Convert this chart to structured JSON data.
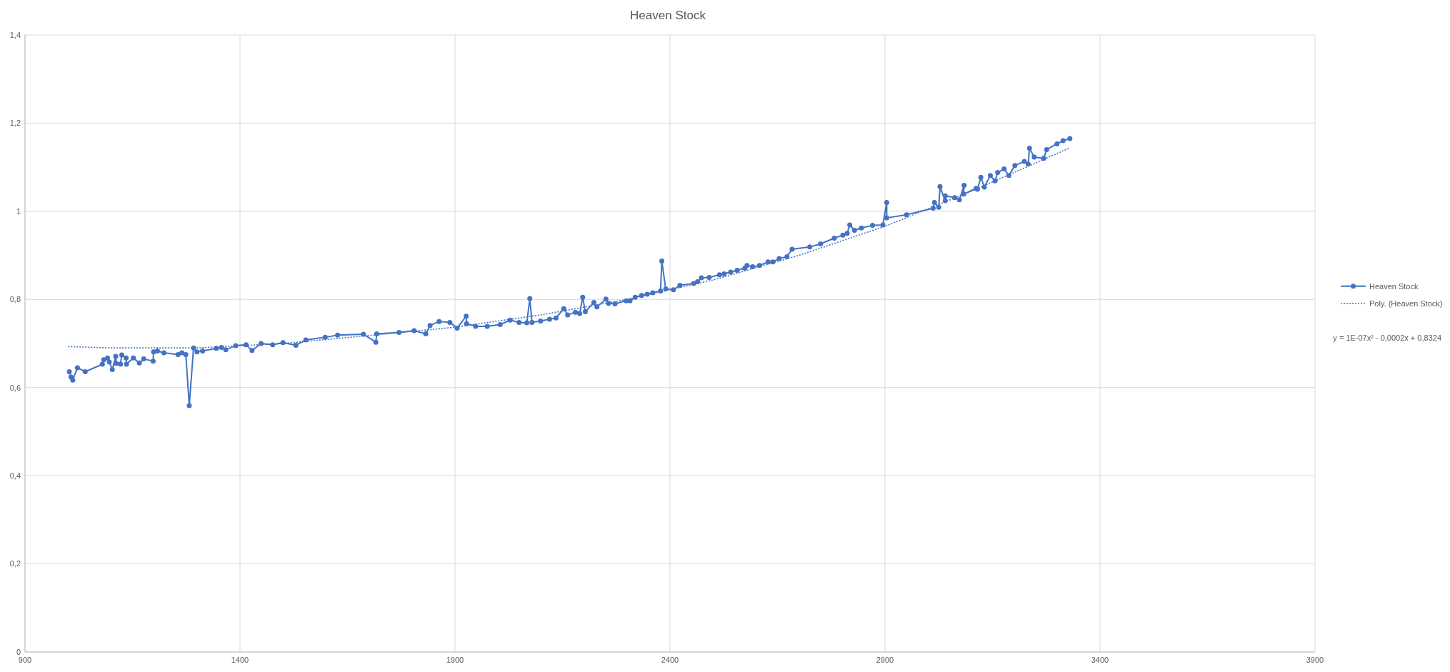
{
  "chart_data": {
    "type": "line",
    "title": "Heaven Stock",
    "xlim": [
      900,
      3900
    ],
    "xticks": [
      900,
      1400,
      1900,
      2400,
      2900,
      3400,
      3900
    ],
    "ylim": [
      0,
      1.4
    ],
    "yticks": [
      0,
      {
        "value": 0.2,
        "label": "0,2"
      },
      {
        "value": 0.4,
        "label": "0,4"
      },
      {
        "value": 0.6,
        "label": "0,6"
      },
      {
        "value": 0.8,
        "label": "0,8"
      },
      1,
      {
        "value": 1.2,
        "label": "1,2"
      },
      {
        "value": 1.4,
        "label": "1,4"
      }
    ],
    "grid": true,
    "legend": "right",
    "marker": "circle",
    "annotations": [
      "y = 1E-07x² - 0,0002x + 0,8324"
    ],
    "series": [
      {
        "name": "Heaven Stock",
        "color": "#4472c4",
        "x": [
          1003,
          1007,
          1011,
          1022,
          1040,
          1080,
          1083,
          1092,
          1096,
          1103,
          1111,
          1112,
          1122,
          1125,
          1135,
          1136,
          1152,
          1166,
          1176,
          1198,
          1199,
          1208,
          1223,
          1256,
          1265,
          1274,
          1282,
          1292,
          1300,
          1313,
          1345,
          1357,
          1367,
          1390,
          1414,
          1428,
          1449,
          1476,
          1500,
          1530,
          1553,
          1598,
          1627,
          1687,
          1716,
          1718,
          1770,
          1805,
          1832,
          1842,
          1863,
          1888,
          1905,
          1926,
          1927,
          1948,
          1975,
          2005,
          2028,
          2049,
          2067,
          2074,
          2079,
          2099,
          2120,
          2135,
          2153,
          2162,
          2180,
          2190,
          2197,
          2203,
          2223,
          2230,
          2251,
          2257,
          2272,
          2298,
          2307,
          2319,
          2334,
          2347,
          2360,
          2378,
          2381,
          2390,
          2408,
          2423,
          2455,
          2464,
          2473,
          2491,
          2515,
          2526,
          2541,
          2556,
          2574,
          2579,
          2592,
          2608,
          2628,
          2639,
          2654,
          2672,
          2684,
          2725,
          2750,
          2782,
          2802,
          2812,
          2818,
          2829,
          2845,
          2871,
          2895,
          2904,
          2904,
          2950,
          3012,
          3015,
          3025,
          3028,
          3040,
          3040,
          3062,
          3073,
          3084,
          3083,
          3112,
          3115,
          3123,
          3131,
          3145,
          3156,
          3162,
          3177,
          3188,
          3202,
          3224,
          3233,
          3236,
          3247,
          3269,
          3276,
          3300,
          3314,
          3330
        ],
        "values": [
          0.636,
          0.624,
          0.617,
          0.645,
          0.636,
          0.653,
          0.663,
          0.667,
          0.658,
          0.641,
          0.671,
          0.655,
          0.653,
          0.674,
          0.667,
          0.653,
          0.667,
          0.656,
          0.665,
          0.66,
          0.681,
          0.683,
          0.679,
          0.675,
          0.679,
          0.675,
          0.559,
          0.69,
          0.681,
          0.683,
          0.689,
          0.691,
          0.686,
          0.695,
          0.697,
          0.684,
          0.7,
          0.697,
          0.702,
          0.696,
          0.708,
          0.714,
          0.719,
          0.721,
          0.703,
          0.722,
          0.725,
          0.729,
          0.722,
          0.741,
          0.75,
          0.748,
          0.735,
          0.762,
          0.745,
          0.739,
          0.739,
          0.743,
          0.753,
          0.748,
          0.747,
          0.802,
          0.748,
          0.751,
          0.755,
          0.758,
          0.779,
          0.765,
          0.771,
          0.768,
          0.805,
          0.772,
          0.793,
          0.783,
          0.801,
          0.791,
          0.79,
          0.797,
          0.797,
          0.805,
          0.809,
          0.812,
          0.815,
          0.819,
          0.887,
          0.824,
          0.822,
          0.832,
          0.836,
          0.84,
          0.849,
          0.85,
          0.856,
          0.858,
          0.862,
          0.866,
          0.871,
          0.877,
          0.874,
          0.877,
          0.885,
          0.885,
          0.893,
          0.897,
          0.914,
          0.919,
          0.926,
          0.939,
          0.946,
          0.95,
          0.969,
          0.957,
          0.962,
          0.968,
          0.969,
          1.02,
          0.985,
          0.992,
          1.007,
          1.02,
          1.009,
          1.056,
          1.024,
          1.035,
          1.031,
          1.026,
          1.059,
          1.039,
          1.052,
          1.05,
          1.077,
          1.055,
          1.081,
          1.069,
          1.088,
          1.096,
          1.081,
          1.104,
          1.113,
          1.107,
          1.143,
          1.123,
          1.12,
          1.14,
          1.153,
          1.16,
          1.165
        ]
      },
      {
        "name": "Poly. (Heaven Stock)",
        "type": "line",
        "color": "#4472c4",
        "marker": "none",
        "line_style": "dotted",
        "x": [
          1000,
          1100,
          1300,
          1500,
          1700,
          1900,
          2100,
          2300,
          2500,
          2700,
          2900,
          3100,
          3330
        ],
        "values": [
          0.693,
          0.69,
          0.69,
          0.7,
          0.718,
          0.737,
          0.765,
          0.8,
          0.844,
          0.9,
          0.966,
          1.045,
          1.144
        ]
      }
    ]
  }
}
